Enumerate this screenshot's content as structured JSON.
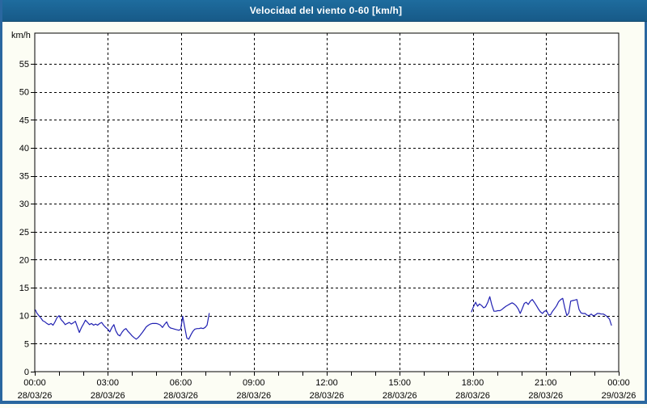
{
  "window": {
    "title": "Velocidad del viento 0-60 [km/h]",
    "title_bar_color": "#1a6190",
    "border_color": "#2a67a0"
  },
  "chart_data": {
    "type": "line",
    "title": "Velocidad del viento 0-60 [km/h]",
    "ylabel": "km/h",
    "ylim": [
      0,
      60.5
    ],
    "yticks": [
      0,
      5,
      10,
      15,
      20,
      25,
      30,
      35,
      40,
      45,
      50,
      55
    ],
    "x_unit": "hours_since_2026-03-28_00:00",
    "xlim_hours": [
      0,
      24
    ],
    "minor_xtick_every_hours": 1,
    "grid": "dashed-black-on-major-ticks",
    "legend": "none",
    "line_color": "#2121b2",
    "xticks": [
      {
        "hour": 0,
        "time": "00:00",
        "date": "28/03/26"
      },
      {
        "hour": 3,
        "time": "03:00",
        "date": "28/03/26"
      },
      {
        "hour": 6,
        "time": "06:00",
        "date": "28/03/26"
      },
      {
        "hour": 9,
        "time": "09:00",
        "date": "28/03/26"
      },
      {
        "hour": 12,
        "time": "12:00",
        "date": "28/03/26"
      },
      {
        "hour": 15,
        "time": "15:00",
        "date": "28/03/26"
      },
      {
        "hour": 18,
        "time": "18:00",
        "date": "28/03/26"
      },
      {
        "hour": 21,
        "time": "21:00",
        "date": "28/03/26"
      },
      {
        "hour": 24,
        "time": "00:00",
        "date": "29/03/26"
      }
    ],
    "series": [
      {
        "name": "wind-speed-morning-segment",
        "points": [
          [
            0.03,
            11.0
          ],
          [
            0.08,
            10.5
          ],
          [
            0.17,
            10.0
          ],
          [
            0.25,
            9.6
          ],
          [
            0.33,
            9.1
          ],
          [
            0.42,
            8.9
          ],
          [
            0.5,
            8.6
          ],
          [
            0.58,
            8.4
          ],
          [
            0.67,
            8.6
          ],
          [
            0.75,
            8.3
          ],
          [
            0.83,
            8.9
          ],
          [
            0.92,
            9.7
          ],
          [
            1.0,
            10.0
          ],
          [
            1.08,
            9.3
          ],
          [
            1.17,
            8.9
          ],
          [
            1.25,
            8.4
          ],
          [
            1.33,
            8.6
          ],
          [
            1.42,
            8.8
          ],
          [
            1.5,
            8.5
          ],
          [
            1.58,
            8.7
          ],
          [
            1.67,
            9.0
          ],
          [
            1.75,
            8.0
          ],
          [
            1.83,
            7.0
          ],
          [
            1.92,
            7.9
          ],
          [
            2.0,
            8.5
          ],
          [
            2.08,
            9.2
          ],
          [
            2.17,
            8.8
          ],
          [
            2.25,
            8.4
          ],
          [
            2.33,
            8.6
          ],
          [
            2.42,
            8.3
          ],
          [
            2.5,
            8.5
          ],
          [
            2.58,
            8.3
          ],
          [
            2.67,
            8.6
          ],
          [
            2.75,
            8.8
          ],
          [
            2.83,
            8.3
          ],
          [
            2.92,
            7.9
          ],
          [
            3.0,
            7.6
          ],
          [
            3.08,
            7.1
          ],
          [
            3.17,
            7.9
          ],
          [
            3.25,
            8.4
          ],
          [
            3.33,
            7.3
          ],
          [
            3.42,
            6.6
          ],
          [
            3.5,
            6.4
          ],
          [
            3.58,
            7.0
          ],
          [
            3.67,
            7.5
          ],
          [
            3.75,
            7.7
          ],
          [
            3.83,
            7.2
          ],
          [
            3.92,
            6.8
          ],
          [
            4.0,
            6.4
          ],
          [
            4.08,
            6.1
          ],
          [
            4.17,
            5.8
          ],
          [
            4.25,
            6.1
          ],
          [
            4.33,
            6.5
          ],
          [
            4.42,
            7.0
          ],
          [
            4.5,
            7.5
          ],
          [
            4.58,
            8.0
          ],
          [
            4.67,
            8.3
          ],
          [
            4.75,
            8.5
          ],
          [
            4.83,
            8.6
          ],
          [
            4.92,
            8.6
          ],
          [
            5.0,
            8.6
          ],
          [
            5.08,
            8.5
          ],
          [
            5.17,
            8.3
          ],
          [
            5.25,
            7.9
          ],
          [
            5.33,
            8.4
          ],
          [
            5.42,
            8.9
          ],
          [
            5.5,
            8.1
          ],
          [
            5.58,
            7.8
          ],
          [
            5.67,
            7.7
          ],
          [
            5.75,
            7.6
          ],
          [
            5.83,
            7.5
          ],
          [
            5.92,
            7.4
          ],
          [
            6.0,
            7.6
          ],
          [
            6.08,
            9.9
          ],
          [
            6.17,
            7.8
          ],
          [
            6.25,
            6.0
          ],
          [
            6.33,
            5.8
          ],
          [
            6.42,
            6.6
          ],
          [
            6.5,
            7.2
          ],
          [
            6.58,
            7.6
          ],
          [
            6.67,
            7.7
          ],
          [
            6.75,
            7.7
          ],
          [
            6.83,
            7.8
          ],
          [
            6.92,
            7.7
          ],
          [
            7.0,
            7.9
          ],
          [
            7.08,
            8.3
          ],
          [
            7.17,
            10.4
          ]
        ]
      },
      {
        "name": "wind-speed-evening-segment",
        "points": [
          [
            17.95,
            10.7
          ],
          [
            18.03,
            11.6
          ],
          [
            18.12,
            12.4
          ],
          [
            18.2,
            11.7
          ],
          [
            18.28,
            12.1
          ],
          [
            18.37,
            11.8
          ],
          [
            18.45,
            11.4
          ],
          [
            18.53,
            11.6
          ],
          [
            18.62,
            12.4
          ],
          [
            18.7,
            13.4
          ],
          [
            18.78,
            12.0
          ],
          [
            18.87,
            10.8
          ],
          [
            18.95,
            10.8
          ],
          [
            19.03,
            10.9
          ],
          [
            19.12,
            10.9
          ],
          [
            19.2,
            11.1
          ],
          [
            19.28,
            11.4
          ],
          [
            19.37,
            11.7
          ],
          [
            19.45,
            11.9
          ],
          [
            19.53,
            12.1
          ],
          [
            19.62,
            12.3
          ],
          [
            19.7,
            12.1
          ],
          [
            19.78,
            11.8
          ],
          [
            19.87,
            11.2
          ],
          [
            19.95,
            10.4
          ],
          [
            20.03,
            11.2
          ],
          [
            20.12,
            12.2
          ],
          [
            20.2,
            12.4
          ],
          [
            20.28,
            12.0
          ],
          [
            20.37,
            12.6
          ],
          [
            20.45,
            12.9
          ],
          [
            20.53,
            12.4
          ],
          [
            20.62,
            11.8
          ],
          [
            20.7,
            11.2
          ],
          [
            20.78,
            10.7
          ],
          [
            20.87,
            10.4
          ],
          [
            20.95,
            10.8
          ],
          [
            21.03,
            10.9
          ],
          [
            21.12,
            10.1
          ],
          [
            21.2,
            10.2
          ],
          [
            21.28,
            10.8
          ],
          [
            21.37,
            11.3
          ],
          [
            21.45,
            11.8
          ],
          [
            21.53,
            12.5
          ],
          [
            21.62,
            12.9
          ],
          [
            21.7,
            13.1
          ],
          [
            21.78,
            11.5
          ],
          [
            21.87,
            10.0
          ],
          [
            21.95,
            10.5
          ],
          [
            22.03,
            12.6
          ],
          [
            22.12,
            12.7
          ],
          [
            22.2,
            12.8
          ],
          [
            22.28,
            12.9
          ],
          [
            22.37,
            11.1
          ],
          [
            22.45,
            10.5
          ],
          [
            22.53,
            10.4
          ],
          [
            22.62,
            10.4
          ],
          [
            22.7,
            10.1
          ],
          [
            22.78,
            10.0
          ],
          [
            22.87,
            10.3
          ],
          [
            22.95,
            10.0
          ],
          [
            23.03,
            10.1
          ],
          [
            23.12,
            10.4
          ],
          [
            23.2,
            10.4
          ],
          [
            23.28,
            10.3
          ],
          [
            23.37,
            10.3
          ],
          [
            23.45,
            10.1
          ],
          [
            23.53,
            9.8
          ],
          [
            23.62,
            9.4
          ],
          [
            23.7,
            8.3
          ]
        ]
      }
    ]
  }
}
